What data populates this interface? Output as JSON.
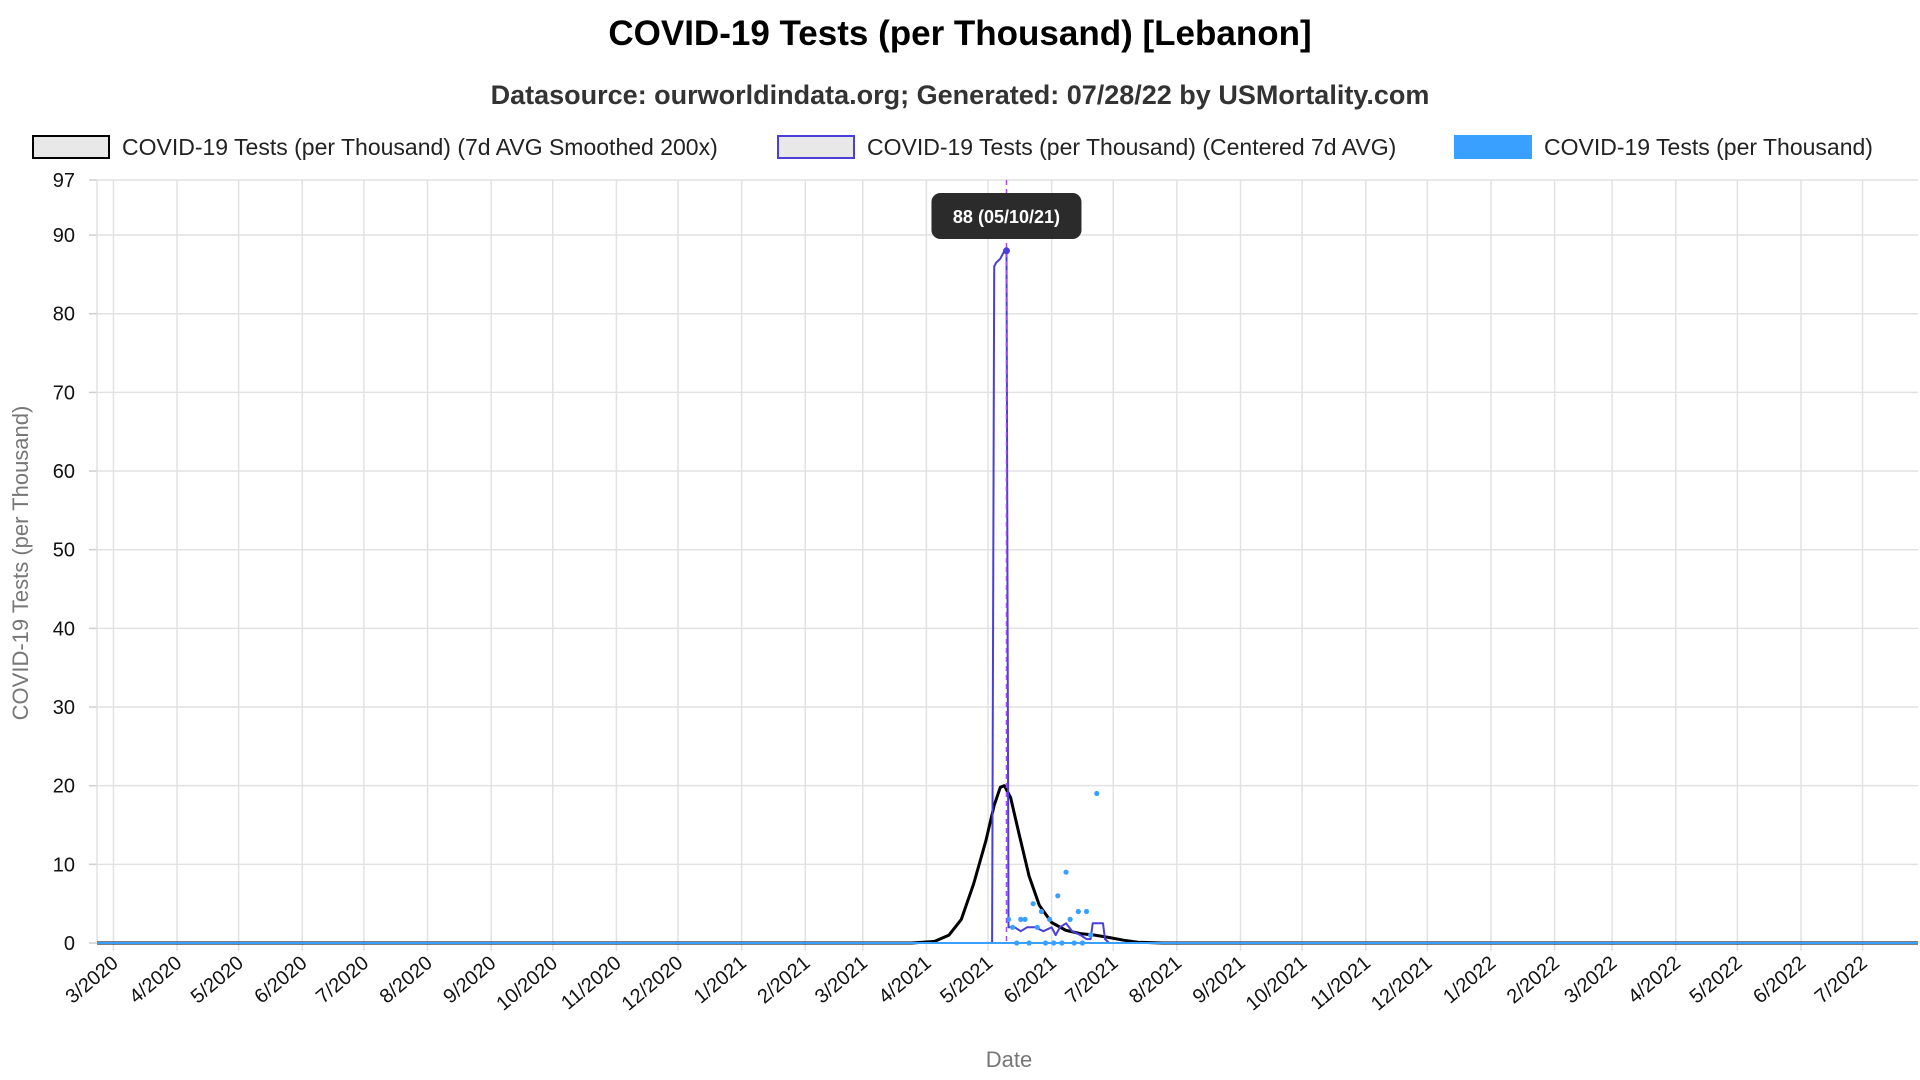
{
  "header": {
    "title": "COVID-19 Tests (per Thousand) [Lebanon]",
    "subtitle": "Datasource: ourworldindata.org; Generated: 07/28/22 by USMortality.com"
  },
  "legend": [
    {
      "label": "COVID-19 Tests (per Thousand) (7d AVG Smoothed 200x)",
      "fill": "#e8e8e8",
      "border": "#000000"
    },
    {
      "label": "COVID-19 Tests (per Thousand) (Centered 7d AVG)",
      "fill": "#e8e8e8",
      "border": "#4a3fd8"
    },
    {
      "label": "COVID-19 Tests (per Thousand)",
      "fill": "#3aa0ff",
      "border": "#3aa0ff"
    }
  ],
  "tooltip": {
    "text": "88 (05/10/21)"
  },
  "chart_data": {
    "type": "line",
    "xlabel": "Date",
    "ylabel": "COVID-19 Tests (per Thousand)",
    "ylim": [
      0,
      97
    ],
    "yticks": [
      0,
      10,
      20,
      30,
      40,
      50,
      60,
      70,
      80,
      90,
      97
    ],
    "xlim": [
      "2020-02-22",
      "2022-07-28"
    ],
    "xtick_dates": [
      "2020-03-01",
      "2020-04-01",
      "2020-05-01",
      "2020-06-01",
      "2020-07-01",
      "2020-08-01",
      "2020-09-01",
      "2020-10-01",
      "2020-11-01",
      "2020-12-01",
      "2021-01-01",
      "2021-02-01",
      "2021-03-01",
      "2021-04-01",
      "2021-05-01",
      "2021-06-01",
      "2021-07-01",
      "2021-08-01",
      "2021-09-01",
      "2021-10-01",
      "2021-11-01",
      "2021-12-01",
      "2022-01-01",
      "2022-02-01",
      "2022-03-01",
      "2022-04-01",
      "2022-05-01",
      "2022-06-01",
      "2022-07-01"
    ],
    "xtick_labels": [
      "3/2020",
      "4/2020",
      "5/2020",
      "6/2020",
      "7/2020",
      "8/2020",
      "9/2020",
      "10/2020",
      "11/2020",
      "12/2020",
      "1/2021",
      "2/2021",
      "3/2021",
      "4/2021",
      "5/2021",
      "6/2021",
      "7/2021",
      "8/2021",
      "9/2021",
      "10/2021",
      "11/2021",
      "12/2021",
      "1/2022",
      "2/2022",
      "3/2022",
      "4/2022",
      "5/2022",
      "6/2022",
      "7/2022"
    ],
    "grid": true,
    "legend_position": "top",
    "highlight": {
      "date": "2021-05-10",
      "value": 88
    },
    "series": [
      {
        "name": "COVID-19 Tests (per Thousand) (7d AVG Smoothed 200x)",
        "color": "#000000",
        "style": "line",
        "points": [
          [
            "2020-02-22",
            0
          ],
          [
            "2021-03-25",
            0
          ],
          [
            "2021-04-05",
            0.2
          ],
          [
            "2021-04-12",
            1
          ],
          [
            "2021-04-18",
            3
          ],
          [
            "2021-04-24",
            7.5
          ],
          [
            "2021-04-30",
            13
          ],
          [
            "2021-05-04",
            17.5
          ],
          [
            "2021-05-07",
            19.8
          ],
          [
            "2021-05-09",
            20
          ],
          [
            "2021-05-12",
            18.5
          ],
          [
            "2021-05-16",
            14
          ],
          [
            "2021-05-21",
            8.5
          ],
          [
            "2021-05-26",
            4.8
          ],
          [
            "2021-06-01",
            2.6
          ],
          [
            "2021-06-08",
            1.6
          ],
          [
            "2021-06-15",
            1.2
          ],
          [
            "2021-06-22",
            1.0
          ],
          [
            "2021-06-29",
            0.7
          ],
          [
            "2021-07-06",
            0.35
          ],
          [
            "2021-07-13",
            0.1
          ],
          [
            "2021-07-25",
            0
          ],
          [
            "2022-07-28",
            0
          ]
        ]
      },
      {
        "name": "COVID-19 Tests (per Thousand) (Centered 7d AVG)",
        "color": "#4a3fd8",
        "style": "line",
        "points": [
          [
            "2020-02-22",
            0
          ],
          [
            "2021-05-03",
            0
          ],
          [
            "2021-05-04",
            86
          ],
          [
            "2021-05-05",
            86.5
          ],
          [
            "2021-05-07",
            87
          ],
          [
            "2021-05-09",
            88
          ],
          [
            "2021-05-10",
            88
          ],
          [
            "2021-05-11",
            2
          ],
          [
            "2021-05-14",
            2
          ],
          [
            "2021-05-17",
            1.5
          ],
          [
            "2021-05-20",
            2
          ],
          [
            "2021-05-24",
            2
          ],
          [
            "2021-05-28",
            1.5
          ],
          [
            "2021-06-01",
            2
          ],
          [
            "2021-06-03",
            1
          ],
          [
            "2021-06-05",
            2
          ],
          [
            "2021-06-08",
            2.5
          ],
          [
            "2021-06-11",
            1.5
          ],
          [
            "2021-06-15",
            1
          ],
          [
            "2021-06-18",
            0.5
          ],
          [
            "2021-06-20",
            0.5
          ],
          [
            "2021-06-21",
            2.5
          ],
          [
            "2021-06-26",
            2.5
          ],
          [
            "2021-06-27",
            0.5
          ],
          [
            "2021-06-29",
            0
          ],
          [
            "2022-07-28",
            0
          ]
        ]
      },
      {
        "name": "COVID-19 Tests (per Thousand)",
        "color": "#3aa0ff",
        "style": "points",
        "points": [
          [
            "2021-05-11",
            3
          ],
          [
            "2021-05-13",
            2
          ],
          [
            "2021-05-15",
            0
          ],
          [
            "2021-05-17",
            3
          ],
          [
            "2021-05-19",
            3
          ],
          [
            "2021-05-21",
            0
          ],
          [
            "2021-05-23",
            5
          ],
          [
            "2021-05-25",
            2
          ],
          [
            "2021-05-27",
            4
          ],
          [
            "2021-05-29",
            0
          ],
          [
            "2021-05-31",
            3
          ],
          [
            "2021-06-02",
            0
          ],
          [
            "2021-06-04",
            6
          ],
          [
            "2021-06-06",
            0
          ],
          [
            "2021-06-08",
            9
          ],
          [
            "2021-06-10",
            3
          ],
          [
            "2021-06-12",
            0
          ],
          [
            "2021-06-14",
            4
          ],
          [
            "2021-06-16",
            0
          ],
          [
            "2021-06-18",
            4
          ],
          [
            "2021-06-20",
            1
          ],
          [
            "2021-06-23",
            19
          ]
        ]
      },
      {
        "name": "COVID-19 Tests (per Thousand) baseline",
        "color": "#3aa0ff",
        "style": "line",
        "points": [
          [
            "2020-02-22",
            0
          ],
          [
            "2022-07-28",
            0
          ]
        ]
      }
    ]
  }
}
